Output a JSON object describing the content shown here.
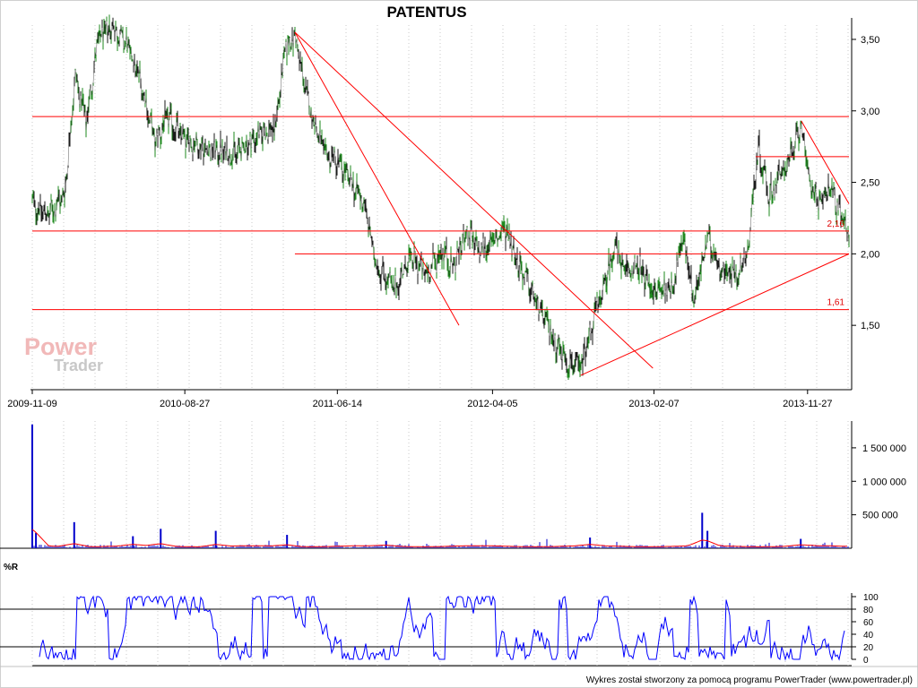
{
  "colors": {
    "price": "#1a1a1a",
    "price_up": "#1e8a1e",
    "trendline": "#ff0000",
    "volume": "#0000cc",
    "volume_avg": "#ff0000",
    "oscillator": "#0000ff",
    "grid": "#c8c8c8"
  },
  "chart_data": [
    {
      "type": "line",
      "title": "PATENTUS",
      "x_tick_labels": [
        "2009-11-09",
        "2010-08-27",
        "2011-06-14",
        "2012-04-05",
        "2013-02-07",
        "2013-11-27"
      ],
      "x_range": [
        "2009-11-09",
        "2014-02-14"
      ],
      "y_tick_labels": [
        "3,50",
        "3,00",
        "2,50",
        "2,00",
        "1,50"
      ],
      "ylim": [
        1.1,
        3.6
      ],
      "grid": "vertical dotted",
      "series": [
        {
          "style": "close line",
          "points": [
            {
              "x": "2009-11-09",
              "y": 2.35
            },
            {
              "x": "2009-12-10",
              "y": 2.27
            },
            {
              "x": "2010-01-10",
              "y": 2.42
            },
            {
              "x": "2010-01-30",
              "y": 3.25
            },
            {
              "x": "2010-02-20",
              "y": 2.92
            },
            {
              "x": "2010-03-15",
              "y": 3.5
            },
            {
              "x": "2010-04-10",
              "y": 3.6
            },
            {
              "x": "2010-05-10",
              "y": 3.45
            },
            {
              "x": "2010-06-05",
              "y": 3.2
            },
            {
              "x": "2010-07-01",
              "y": 2.78
            },
            {
              "x": "2010-07-25",
              "y": 2.95
            },
            {
              "x": "2010-08-27",
              "y": 2.8
            },
            {
              "x": "2010-10-10",
              "y": 2.73
            },
            {
              "x": "2010-12-01",
              "y": 2.7
            },
            {
              "x": "2011-01-15",
              "y": 2.83
            },
            {
              "x": "2011-02-15",
              "y": 2.88
            },
            {
              "x": "2011-03-08",
              "y": 3.45
            },
            {
              "x": "2011-03-25",
              "y": 3.52
            },
            {
              "x": "2011-04-20",
              "y": 3.05
            },
            {
              "x": "2011-05-20",
              "y": 2.7
            },
            {
              "x": "2011-06-14",
              "y": 2.65
            },
            {
              "x": "2011-07-10",
              "y": 2.5
            },
            {
              "x": "2011-08-05",
              "y": 2.35
            },
            {
              "x": "2011-08-25",
              "y": 1.95
            },
            {
              "x": "2011-10-01",
              "y": 1.75
            },
            {
              "x": "2011-11-01",
              "y": 1.98
            },
            {
              "x": "2011-12-01",
              "y": 1.85
            },
            {
              "x": "2012-01-01",
              "y": 2.03
            },
            {
              "x": "2012-01-20",
              "y": 1.9
            },
            {
              "x": "2012-02-15",
              "y": 2.15
            },
            {
              "x": "2012-03-10",
              "y": 2.02
            },
            {
              "x": "2012-04-05",
              "y": 2.08
            },
            {
              "x": "2012-05-01",
              "y": 2.18
            },
            {
              "x": "2012-05-25",
              "y": 1.93
            },
            {
              "x": "2012-06-25",
              "y": 1.68
            },
            {
              "x": "2012-07-25",
              "y": 1.45
            },
            {
              "x": "2012-08-25",
              "y": 1.25
            },
            {
              "x": "2012-09-20",
              "y": 1.2
            },
            {
              "x": "2012-10-10",
              "y": 1.48
            },
            {
              "x": "2012-11-05",
              "y": 1.78
            },
            {
              "x": "2012-11-25",
              "y": 2.08
            },
            {
              "x": "2012-12-10",
              "y": 1.88
            },
            {
              "x": "2013-01-10",
              "y": 1.9
            },
            {
              "x": "2013-02-07",
              "y": 1.73
            },
            {
              "x": "2013-03-15",
              "y": 1.78
            },
            {
              "x": "2013-04-05",
              "y": 2.12
            },
            {
              "x": "2013-04-25",
              "y": 1.68
            },
            {
              "x": "2013-05-20",
              "y": 2.1
            },
            {
              "x": "2013-06-15",
              "y": 1.9
            },
            {
              "x": "2013-07-15",
              "y": 1.85
            },
            {
              "x": "2013-08-05",
              "y": 2.02
            },
            {
              "x": "2013-08-25",
              "y": 2.75
            },
            {
              "x": "2013-09-15",
              "y": 2.4
            },
            {
              "x": "2013-10-10",
              "y": 2.58
            },
            {
              "x": "2013-11-01",
              "y": 2.72
            },
            {
              "x": "2013-11-15",
              "y": 2.93
            },
            {
              "x": "2013-11-27",
              "y": 2.55
            },
            {
              "x": "2013-12-20",
              "y": 2.35
            },
            {
              "x": "2014-01-10",
              "y": 2.48
            },
            {
              "x": "2014-01-30",
              "y": 2.25
            },
            {
              "x": "2014-02-14",
              "y": 2.15
            }
          ]
        }
      ],
      "trendlines": [
        {
          "from": {
            "x": "2009-11-09",
            "y": 2.96
          },
          "to": {
            "x": "2014-02-14",
            "y": 2.96
          }
        },
        {
          "from": {
            "x": "2009-11-09",
            "y": 2.16
          },
          "to": {
            "x": "2014-02-14",
            "y": 2.16
          }
        },
        {
          "from": {
            "x": "2009-11-09",
            "y": 1.61
          },
          "to": {
            "x": "2014-02-14",
            "y": 1.61
          }
        },
        {
          "from": {
            "x": "2011-03-25",
            "y": 2.0
          },
          "to": {
            "x": "2014-02-14",
            "y": 2.0
          }
        },
        {
          "from": {
            "x": "2013-08-20",
            "y": 2.68
          },
          "to": {
            "x": "2014-02-14",
            "y": 2.68
          }
        },
        {
          "from": {
            "x": "2011-03-25",
            "y": 3.55
          },
          "to": {
            "x": "2013-02-05",
            "y": 1.2
          }
        },
        {
          "from": {
            "x": "2011-03-25",
            "y": 3.55
          },
          "to": {
            "x": "2012-02-01",
            "y": 1.5
          }
        },
        {
          "from": {
            "x": "2012-09-20",
            "y": 1.15
          },
          "to": {
            "x": "2014-02-14",
            "y": 2.0
          }
        },
        {
          "from": {
            "x": "2013-11-15",
            "y": 2.93
          },
          "to": {
            "x": "2014-02-14",
            "y": 2.35
          }
        }
      ],
      "level_labels": [
        {
          "text": "2,16",
          "y": 2.16
        },
        {
          "text": "1,61",
          "y": 1.61
        }
      ]
    },
    {
      "type": "bar",
      "name": "volume",
      "y_tick_labels": [
        "1 500 000",
        "1 000 000",
        "500 000"
      ],
      "ylim": [
        0,
        1900000
      ],
      "spikes": [
        {
          "x": "2009-11-09",
          "y": 1850000
        },
        {
          "x": "2009-11-16",
          "y": 230000
        },
        {
          "x": "2010-01-28",
          "y": 390000
        },
        {
          "x": "2010-05-20",
          "y": 180000
        },
        {
          "x": "2010-07-12",
          "y": 290000
        },
        {
          "x": "2010-10-25",
          "y": 260000
        },
        {
          "x": "2011-03-10",
          "y": 200000
        },
        {
          "x": "2011-09-15",
          "y": 110000
        },
        {
          "x": "2012-10-08",
          "y": 160000
        },
        {
          "x": "2013-05-10",
          "y": 530000
        },
        {
          "x": "2013-05-20",
          "y": 260000
        },
        {
          "x": "2013-11-14",
          "y": 140000
        }
      ]
    },
    {
      "type": "line",
      "name": "%R",
      "title": "%R",
      "y_tick_labels": [
        "100",
        "80",
        "60",
        "40",
        "20",
        "0"
      ],
      "ylim": [
        0,
        100
      ],
      "reference_lines": [
        80,
        20
      ]
    }
  ],
  "footer": "Wykres został stworzony za pomocą programu PowerTrader (www.powertrader.pl)",
  "watermark": {
    "line1": "Power",
    "line2": "Trader"
  }
}
